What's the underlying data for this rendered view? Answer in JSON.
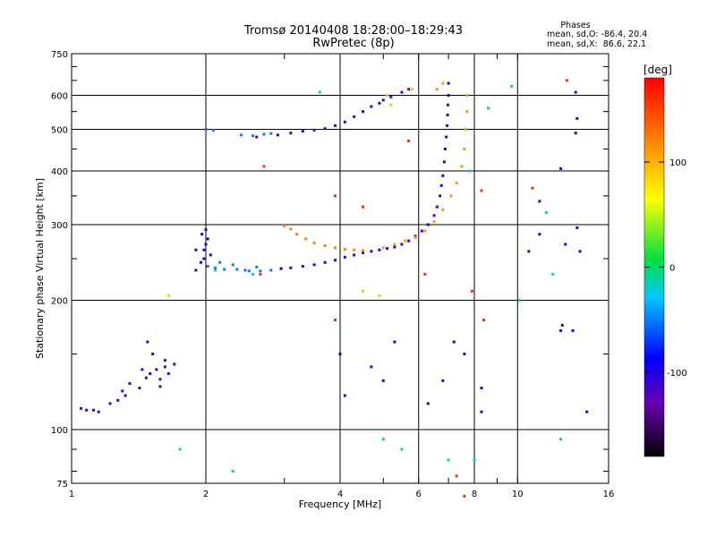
{
  "header": {
    "title": "Tromsø 20140408 18:28:00–18:29:43",
    "subtitle": "RwPretec (8p)",
    "phases_title": "Phases",
    "stats_o": "mean, sd,O: -86.4, 20.4",
    "stats_x": "mean, sd,X:  86.6, 22.1"
  },
  "chart_data": {
    "type": "scatter",
    "title": "Tromsø 20140408 18:28:00–18:29:43",
    "subtitle": "RwPretec (8p)",
    "xlabel": "Frequency [MHz]",
    "ylabel": "Stationary phase Virtual Height [km]",
    "x_scale": "log",
    "y_scale": "log",
    "xlim": [
      1,
      16
    ],
    "ylim": [
      75,
      750
    ],
    "x_ticks": [
      1,
      2,
      4,
      6,
      8,
      10,
      16
    ],
    "y_ticks": [
      75,
      100,
      200,
      300,
      400,
      500,
      600,
      750
    ],
    "grid": true,
    "colorbar": {
      "label": "[deg]",
      "range": [
        -180,
        180
      ],
      "ticks": [
        -100,
        0,
        100
      ],
      "colors": [
        "#000000",
        "#6a00b0",
        "#0000ff",
        "#00c8ff",
        "#00e040",
        "#ffff00",
        "#ff8000",
        "#ff0000"
      ]
    },
    "series": [
      {
        "color_deg": -110,
        "points": [
          [
            1.05,
            112
          ],
          [
            1.08,
            111
          ],
          [
            1.12,
            111
          ],
          [
            1.15,
            110
          ],
          [
            1.22,
            115
          ],
          [
            1.27,
            117
          ],
          [
            1.3,
            123
          ],
          [
            1.32,
            120
          ],
          [
            1.35,
            128
          ],
          [
            1.42,
            125
          ],
          [
            1.47,
            132
          ],
          [
            1.5,
            135
          ],
          [
            1.55,
            138
          ],
          [
            1.58,
            131
          ],
          [
            1.62,
            140
          ],
          [
            1.65,
            135
          ],
          [
            1.52,
            150
          ],
          [
            1.62,
            145
          ],
          [
            1.7,
            142
          ],
          [
            1.58,
            126
          ],
          [
            1.48,
            160
          ],
          [
            1.44,
            138
          ]
        ]
      },
      {
        "color_deg": -100,
        "points": [
          [
            1.9,
            235
          ],
          [
            1.95,
            245
          ],
          [
            1.98,
            262
          ],
          [
            2.0,
            270
          ],
          [
            2.02,
            278
          ],
          [
            1.96,
            285
          ],
          [
            2.05,
            255
          ],
          [
            1.9,
            262
          ],
          [
            2.0,
            292
          ],
          [
            1.98,
            250
          ]
        ]
      },
      {
        "color_deg": -50,
        "points": [
          [
            2.02,
            240
          ],
          [
            2.1,
            238
          ],
          [
            2.2,
            236
          ],
          [
            2.35,
            236
          ],
          [
            2.5,
            234
          ],
          [
            2.65,
            234
          ],
          [
            2.8,
            235
          ],
          [
            2.95,
            237
          ],
          [
            2.3,
            242
          ],
          [
            2.6,
            239
          ],
          [
            2.15,
            245
          ],
          [
            2.45,
            235
          ]
        ]
      },
      {
        "color_deg": -105,
        "points": [
          [
            2.95,
            237
          ],
          [
            3.1,
            238
          ],
          [
            3.3,
            240
          ],
          [
            3.5,
            242
          ],
          [
            3.7,
            245
          ],
          [
            3.9,
            248
          ],
          [
            4.1,
            252
          ],
          [
            4.3,
            255
          ],
          [
            4.5,
            258
          ],
          [
            4.7,
            260
          ],
          [
            4.9,
            262
          ],
          [
            5.1,
            264
          ],
          [
            5.3,
            266
          ],
          [
            5.5,
            270
          ],
          [
            5.7,
            275
          ],
          [
            5.9,
            282
          ],
          [
            6.1,
            290
          ],
          [
            6.3,
            300
          ],
          [
            6.5,
            315
          ],
          [
            6.6,
            330
          ],
          [
            6.7,
            350
          ],
          [
            6.75,
            370
          ],
          [
            6.8,
            390
          ],
          [
            6.85,
            420
          ],
          [
            6.88,
            450
          ],
          [
            6.92,
            480
          ],
          [
            6.95,
            510
          ],
          [
            6.97,
            540
          ],
          [
            6.98,
            570
          ],
          [
            7.0,
            600
          ],
          [
            7.0,
            640
          ]
        ]
      },
      {
        "color_deg": -50,
        "points": [
          [
            2.0,
            500
          ],
          [
            2.08,
            498
          ],
          [
            2.4,
            485
          ],
          [
            2.55,
            483
          ],
          [
            2.7,
            487
          ],
          [
            2.8,
            489
          ]
        ]
      },
      {
        "color_deg": -110,
        "points": [
          [
            2.6,
            480
          ],
          [
            2.9,
            485
          ],
          [
            3.1,
            490
          ],
          [
            3.3,
            495
          ],
          [
            3.5,
            498
          ],
          [
            3.7,
            502
          ],
          [
            3.9,
            510
          ],
          [
            4.1,
            520
          ],
          [
            4.3,
            535
          ],
          [
            4.5,
            550
          ],
          [
            4.7,
            565
          ],
          [
            4.9,
            575
          ],
          [
            5.0,
            585
          ],
          [
            5.2,
            595
          ],
          [
            5.5,
            610
          ],
          [
            5.7,
            620
          ]
        ]
      },
      {
        "color_deg": 120,
        "points": [
          [
            3.0,
            298
          ],
          [
            3.1,
            293
          ],
          [
            3.2,
            285
          ],
          [
            3.35,
            278
          ],
          [
            3.5,
            272
          ],
          [
            3.7,
            268
          ],
          [
            3.9,
            265
          ],
          [
            4.1,
            263
          ],
          [
            4.3,
            262
          ],
          [
            4.5,
            261
          ]
        ]
      },
      {
        "color_deg": 110,
        "points": [
          [
            5.0,
            265
          ],
          [
            5.3,
            270
          ],
          [
            5.6,
            275
          ],
          [
            5.9,
            280
          ],
          [
            6.2,
            290
          ],
          [
            6.5,
            305
          ],
          [
            6.8,
            325
          ],
          [
            7.1,
            350
          ],
          [
            7.3,
            375
          ],
          [
            7.5,
            410
          ],
          [
            7.6,
            450
          ],
          [
            7.65,
            500
          ],
          [
            7.7,
            550
          ],
          [
            7.7,
            600
          ],
          [
            6.8,
            640
          ],
          [
            6.6,
            620
          ]
        ]
      },
      {
        "color_deg": 90,
        "points": [
          [
            1.65,
            205
          ],
          [
            4.5,
            210
          ],
          [
            4.9,
            205
          ],
          [
            5.1,
            600
          ],
          [
            5.8,
            620
          ],
          [
            5.2,
            570
          ]
        ]
      },
      {
        "color_deg": -20,
        "points": [
          [
            1.75,
            90
          ],
          [
            2.3,
            80
          ],
          [
            2.55,
            230
          ],
          [
            5.0,
            95
          ],
          [
            5.5,
            90
          ],
          [
            7.0,
            85
          ],
          [
            8.0,
            85
          ],
          [
            10.1,
            200
          ],
          [
            12.0,
            230
          ],
          [
            12.5,
            95
          ],
          [
            11.6,
            320
          ],
          [
            9.7,
            630
          ],
          [
            8.6,
            560
          ],
          [
            7.8,
            400
          ],
          [
            3.6,
            610
          ],
          [
            2.1,
            235
          ]
        ]
      },
      {
        "color_deg": 160,
        "points": [
          [
            2.7,
            410
          ],
          [
            3.9,
            350
          ],
          [
            3.9,
            180
          ],
          [
            4.5,
            330
          ],
          [
            6.2,
            230
          ],
          [
            7.6,
            70
          ],
          [
            7.3,
            78
          ],
          [
            7.9,
            210
          ],
          [
            8.4,
            180
          ],
          [
            8.3,
            360
          ],
          [
            10.8,
            365
          ],
          [
            12.9,
            650
          ],
          [
            2.65,
            230
          ],
          [
            5.7,
            470
          ]
        ]
      },
      {
        "color_deg": -100,
        "points": [
          [
            4.0,
            150
          ],
          [
            4.1,
            120
          ],
          [
            4.7,
            140
          ],
          [
            5.0,
            130
          ],
          [
            5.3,
            160
          ],
          [
            6.3,
            115
          ],
          [
            6.8,
            130
          ],
          [
            7.2,
            160
          ],
          [
            7.6,
            150
          ],
          [
            8.3,
            110
          ],
          [
            8.3,
            125
          ],
          [
            10.6,
            260
          ],
          [
            11.2,
            285
          ],
          [
            12.5,
            170
          ],
          [
            13.5,
            610
          ],
          [
            13.6,
            530
          ],
          [
            13.5,
            490
          ],
          [
            13.3,
            170
          ],
          [
            12.5,
            405
          ],
          [
            12.8,
            270
          ],
          [
            13.8,
            260
          ],
          [
            14.3,
            110
          ],
          [
            13.6,
            295
          ],
          [
            12.6,
            175
          ],
          [
            11.2,
            340
          ]
        ]
      }
    ]
  }
}
